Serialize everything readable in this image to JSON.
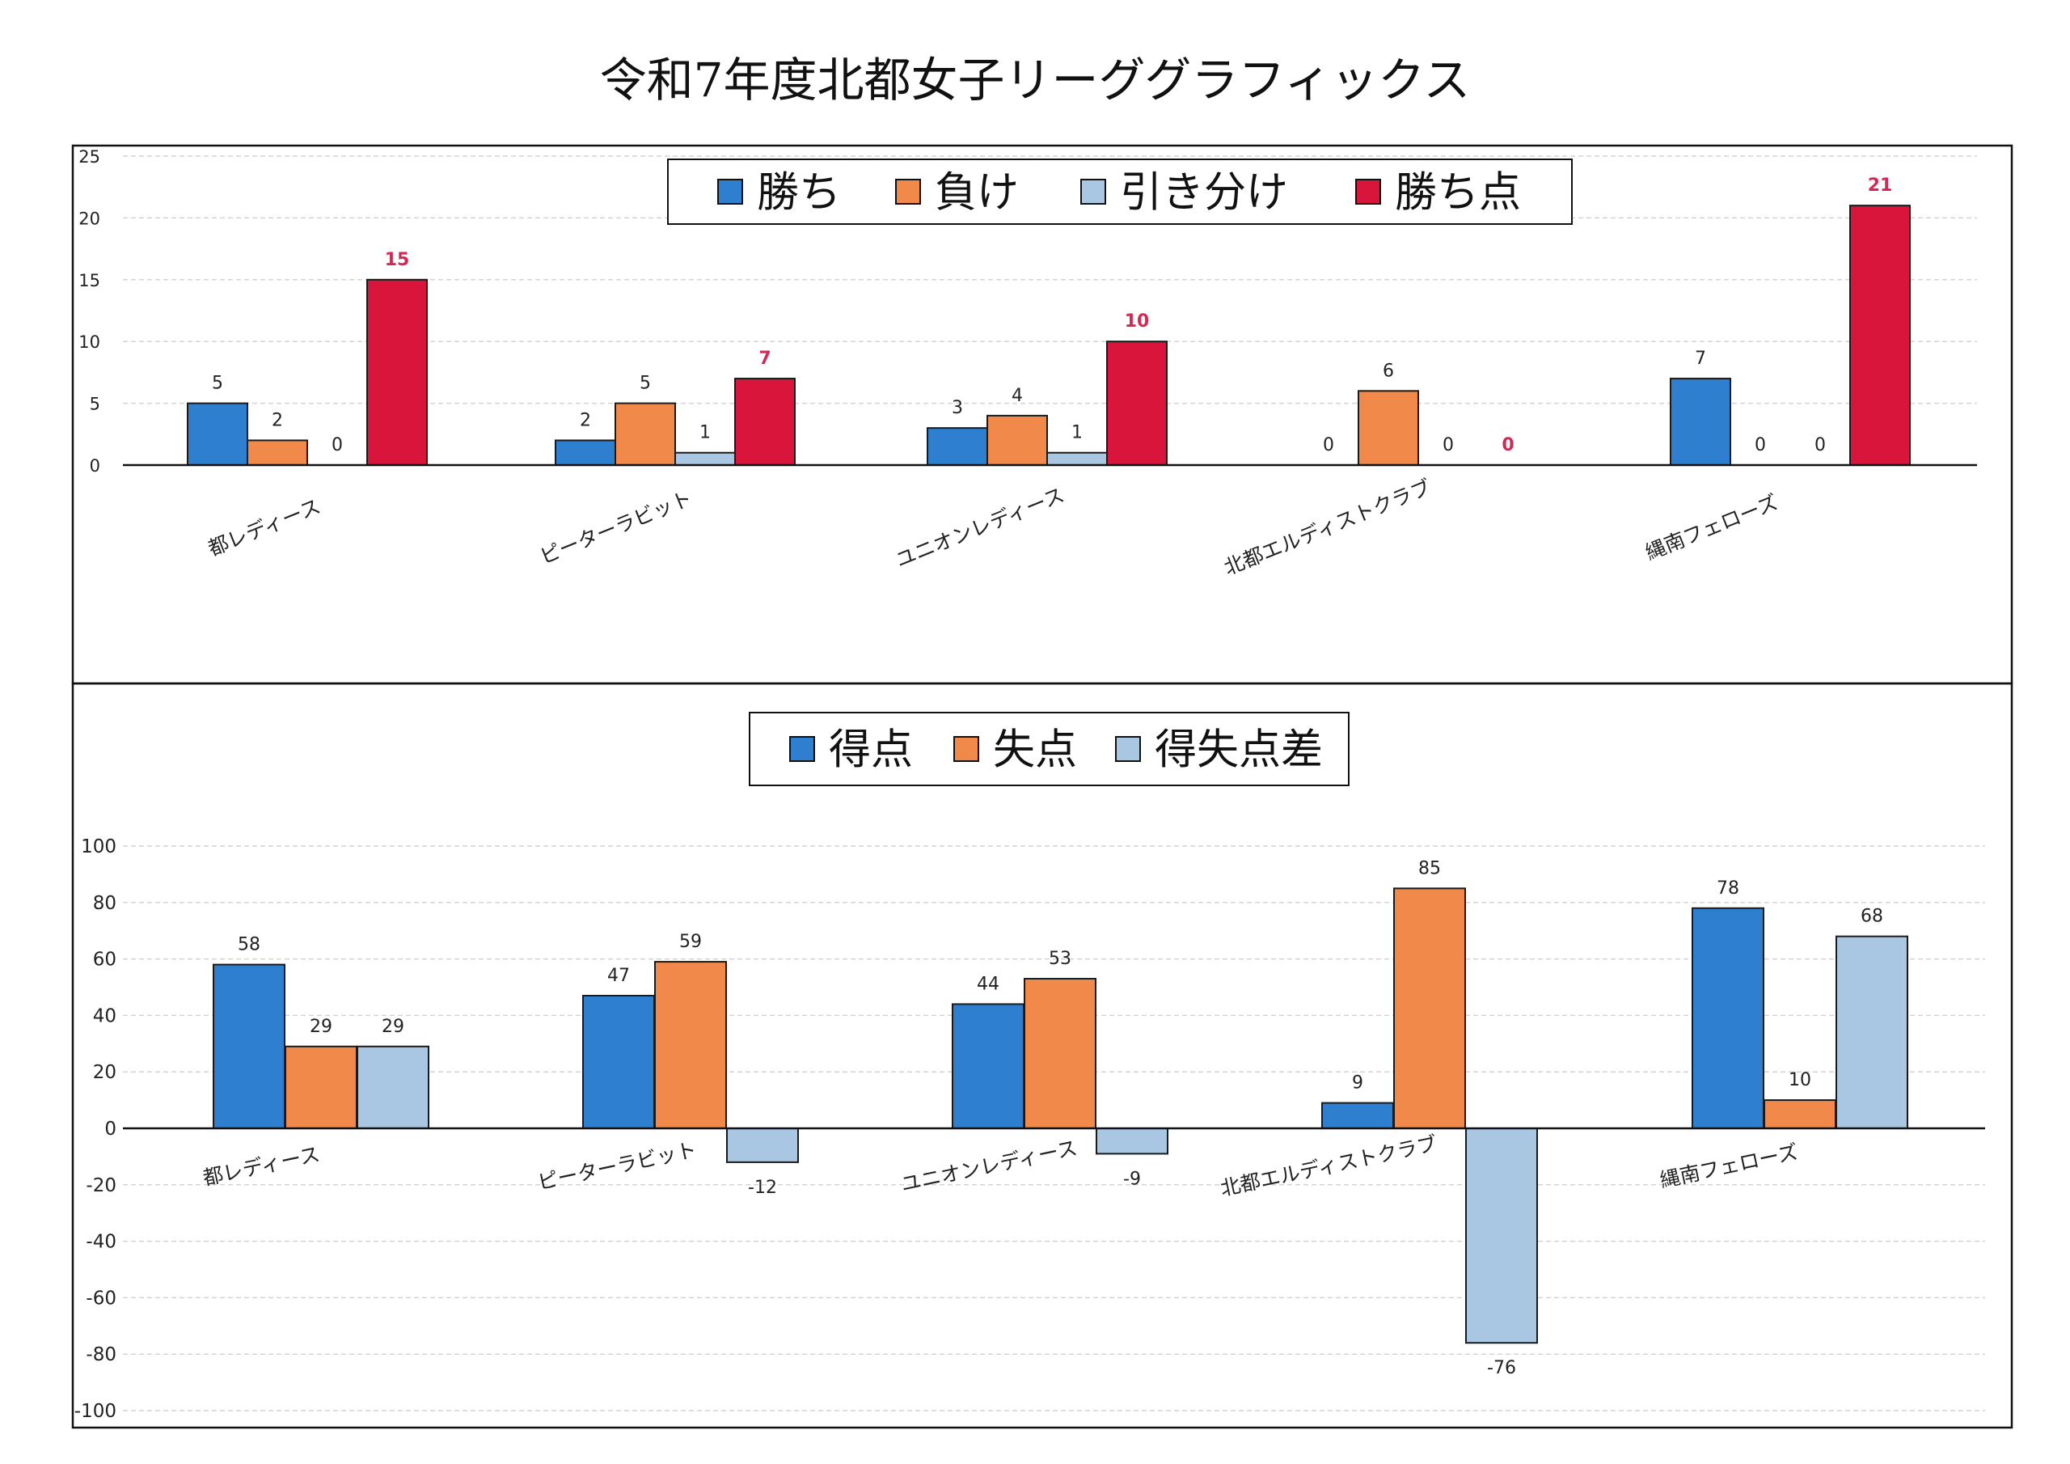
{
  "title": "令和7年度北都女子リーググラフィックス",
  "colors": {
    "blue": "#2f7fd1",
    "orange": "#f0894a",
    "lightblue": "#a9c6e2",
    "red": "#d9153b",
    "red_label": "#d12a55",
    "axis": "#111111",
    "grid": "#d4d4d4"
  },
  "chart_data": [
    {
      "type": "bar",
      "categories": [
        "都レディース",
        "ピーターラビット",
        "ユニオンレディース",
        "北都エルディストクラブ",
        "縄南フェローズ"
      ],
      "series": [
        {
          "name": "勝ち",
          "values": [
            5,
            2,
            3,
            0,
            7
          ]
        },
        {
          "name": "負け",
          "values": [
            2,
            5,
            4,
            6,
            0
          ]
        },
        {
          "name": "引き分け",
          "values": [
            0,
            1,
            1,
            0,
            0
          ]
        },
        {
          "name": "勝ち点",
          "values": [
            15,
            7,
            10,
            0,
            21
          ]
        }
      ],
      "ylim": [
        0,
        25
      ],
      "yticks": [
        0,
        5,
        10,
        15,
        20,
        25
      ],
      "grid": true,
      "legend": "top-center"
    },
    {
      "type": "bar",
      "categories": [
        "都レディース",
        "ピーターラビット",
        "ユニオンレディース",
        "北都エルディストクラブ",
        "縄南フェローズ"
      ],
      "series": [
        {
          "name": "得点",
          "values": [
            58,
            47,
            44,
            9,
            78
          ]
        },
        {
          "name": "失点",
          "values": [
            29,
            59,
            53,
            85,
            10
          ]
        },
        {
          "name": "得失点差",
          "values": [
            29,
            -12,
            -9,
            -76,
            68
          ]
        }
      ],
      "ylim": [
        -100,
        100
      ],
      "yticks": [
        -100,
        -80,
        -60,
        -40,
        -20,
        0,
        20,
        40,
        60,
        80,
        100
      ],
      "grid": true,
      "legend": "top-center"
    }
  ]
}
